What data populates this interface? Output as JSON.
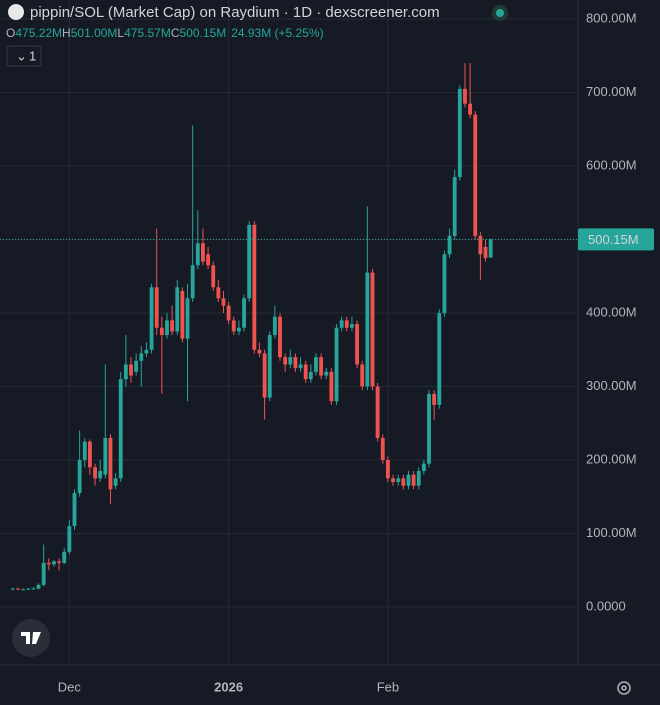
{
  "chart_data": {
    "type": "candlestick",
    "title": "pippin/SOL (Market Cap) on Raydium · 1D · dexscreener.com",
    "legend": [
      {
        "key": "O",
        "value": "475.22M"
      },
      {
        "key": "H",
        "value": "501.00M"
      },
      {
        "key": "L",
        "value": "475.57M"
      },
      {
        "key": "C",
        "value": "500.15M"
      }
    ],
    "change": "24.93M (+5.25%)",
    "interval_badge": "1",
    "last_label": "500.15M",
    "up_color": "#26a69a",
    "down_color": "#ef5350",
    "grid": true,
    "ylim": [
      -79,
      826
    ],
    "yticks": [
      {
        "value": 0,
        "label": "0.0000"
      },
      {
        "value": 100,
        "label": "100.00M"
      },
      {
        "value": 200,
        "label": "200.00M"
      },
      {
        "value": 300,
        "label": "300.00M"
      },
      {
        "value": 400,
        "label": "400.00M"
      },
      {
        "value": 500,
        "label": "500.00M"
      },
      {
        "value": 600,
        "label": "600.00M"
      },
      {
        "value": 700,
        "label": "700.00M"
      },
      {
        "value": 800,
        "label": "800.00M"
      }
    ],
    "xlim": [
      -2.5,
      110
    ],
    "xticks": [
      {
        "value": 11,
        "label": "Dec"
      },
      {
        "value": 42,
        "label": "2026"
      },
      {
        "value": 73,
        "label": "Feb"
      }
    ],
    "open": [
      24,
      25,
      24,
      24,
      25,
      25,
      30,
      60,
      58,
      62,
      60,
      75,
      110,
      155,
      200,
      225,
      190,
      175,
      180,
      230,
      165,
      175,
      310,
      330,
      320,
      335,
      345,
      350,
      435,
      380,
      370,
      390,
      375,
      430,
      365,
      420,
      465,
      495,
      480,
      465,
      435,
      420,
      410,
      390,
      375,
      380,
      420,
      520,
      350,
      345,
      285,
      370,
      395,
      340,
      330,
      340,
      325,
      330,
      310,
      320,
      340,
      315,
      320,
      280,
      380,
      390,
      380,
      385,
      330,
      300,
      455,
      300,
      230,
      200,
      175,
      170,
      175,
      165,
      180,
      165,
      185,
      195,
      290,
      275,
      400,
      480,
      505,
      585,
      705,
      685,
      670,
      505,
      490,
      475.22
    ],
    "high": [
      26,
      26,
      25,
      26,
      27,
      32,
      85,
      66,
      64,
      66,
      80,
      118,
      160,
      240,
      230,
      228,
      195,
      200,
      330,
      235,
      182,
      320,
      370,
      340,
      345,
      355,
      360,
      440,
      515,
      395,
      400,
      410,
      445,
      435,
      440,
      655,
      540,
      515,
      490,
      470,
      445,
      430,
      415,
      395,
      390,
      425,
      525,
      525,
      360,
      350,
      375,
      410,
      400,
      345,
      350,
      345,
      340,
      335,
      330,
      345,
      345,
      325,
      325,
      385,
      395,
      395,
      395,
      390,
      335,
      545,
      460,
      305,
      235,
      205,
      180,
      180,
      180,
      185,
      185,
      190,
      200,
      295,
      295,
      405,
      485,
      515,
      595,
      710,
      740,
      740,
      675,
      510,
      500,
      501
    ],
    "low": [
      23,
      23,
      23,
      23,
      24,
      24,
      28,
      50,
      55,
      50,
      58,
      72,
      105,
      150,
      190,
      180,
      165,
      170,
      175,
      140,
      160,
      170,
      300,
      305,
      315,
      300,
      340,
      345,
      370,
      290,
      365,
      370,
      370,
      360,
      280,
      415,
      460,
      465,
      460,
      430,
      415,
      400,
      385,
      370,
      370,
      375,
      415,
      345,
      340,
      255,
      280,
      365,
      335,
      320,
      325,
      320,
      320,
      305,
      305,
      315,
      310,
      310,
      275,
      275,
      375,
      375,
      375,
      325,
      295,
      295,
      295,
      225,
      195,
      170,
      165,
      165,
      160,
      160,
      160,
      160,
      180,
      190,
      255,
      270,
      395,
      475,
      500,
      580,
      680,
      665,
      500,
      445,
      470,
      475.57
    ],
    "close": [
      25,
      24,
      24,
      25,
      25,
      30,
      60,
      58,
      62,
      60,
      75,
      110,
      155,
      200,
      225,
      190,
      175,
      185,
      230,
      160,
      175,
      310,
      330,
      315,
      335,
      345,
      350,
      435,
      380,
      370,
      390,
      375,
      435,
      365,
      420,
      465,
      495,
      470,
      465,
      435,
      420,
      410,
      390,
      375,
      380,
      420,
      520,
      350,
      345,
      285,
      370,
      395,
      340,
      330,
      340,
      325,
      330,
      310,
      320,
      340,
      315,
      320,
      280,
      380,
      390,
      380,
      385,
      330,
      300,
      455,
      300,
      230,
      200,
      175,
      170,
      175,
      165,
      180,
      165,
      185,
      195,
      290,
      275,
      400,
      480,
      505,
      585,
      705,
      685,
      670,
      505,
      480,
      475,
      500.15
    ]
  }
}
